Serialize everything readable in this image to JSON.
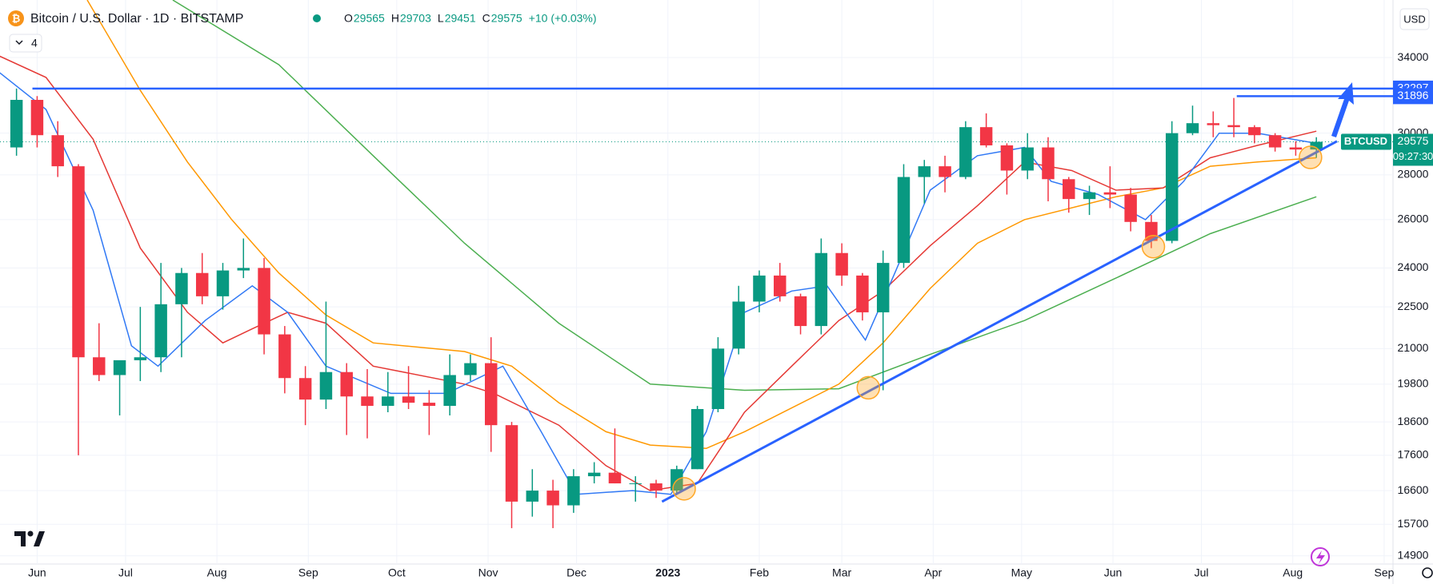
{
  "chart_data": {
    "type": "candlestick",
    "title": "Bitcoin / U.S. Dollar · 1D · BITSTAMP",
    "ohlc_header": [
      {
        "label": "O",
        "value": 29565
      },
      {
        "label": "H",
        "value": 29703
      },
      {
        "label": "L",
        "value": 29451
      },
      {
        "label": "C",
        "value": 29575
      }
    ],
    "change": "+10 (+0.03%)",
    "indicator_count": "4",
    "currency": "USD",
    "up_color": "#089981",
    "down_color": "#f23645",
    "log_scale": true,
    "xlim": [
      -12.6,
      460
    ],
    "ylim": [
      14700,
      37400
    ],
    "xticks": [
      {
        "value": 0,
        "label": "Jun"
      },
      {
        "value": 30,
        "label": "Jul"
      },
      {
        "value": 61,
        "label": "Aug"
      },
      {
        "value": 92,
        "label": "Sep"
      },
      {
        "value": 122,
        "label": "Oct"
      },
      {
        "value": 153,
        "label": "Nov"
      },
      {
        "value": 183,
        "label": "Dec"
      },
      {
        "value": 214,
        "label": "2023"
      },
      {
        "value": 245,
        "label": "Feb"
      },
      {
        "value": 273,
        "label": "Mar"
      },
      {
        "value": 304,
        "label": "Apr"
      },
      {
        "value": 334,
        "label": "May"
      },
      {
        "value": 365,
        "label": "Jun"
      },
      {
        "value": 395,
        "label": "Jul"
      },
      {
        "value": 426,
        "label": "Aug"
      },
      {
        "value": 457,
        "label": "Sep"
      }
    ],
    "yticks": [
      14900,
      15700,
      16600,
      17600,
      18600,
      19800,
      21000,
      22500,
      24000,
      26000,
      28000,
      30000,
      34000
    ],
    "candles": {
      "x": [
        -7,
        0,
        7,
        14,
        21,
        28,
        35,
        42,
        49,
        56,
        63,
        70,
        77,
        84,
        91,
        98,
        105,
        112,
        119,
        126,
        133,
        140,
        147,
        154,
        161,
        168,
        175,
        182,
        189,
        196,
        203,
        210,
        217,
        224,
        231,
        238,
        245,
        252,
        259,
        266,
        273,
        280,
        287,
        294,
        301,
        308,
        315,
        322,
        329,
        336,
        343,
        350,
        357,
        364,
        371,
        378,
        385,
        392,
        399,
        406,
        413,
        420,
        427,
        434
      ],
      "open": [
        29300,
        31700,
        29900,
        28400,
        20700,
        20100,
        20600,
        20700,
        22600,
        23800,
        22900,
        23900,
        24000,
        21500,
        20000,
        19300,
        20200,
        19400,
        19100,
        19400,
        19200,
        19100,
        20100,
        20500,
        18500,
        16300,
        16600,
        16200,
        17000,
        17100,
        16800,
        16800,
        16600,
        17200,
        19000,
        21000,
        22700,
        23700,
        22900,
        21800,
        24600,
        23700,
        22300,
        24200,
        27900,
        28400,
        27900,
        30300,
        29400,
        28200,
        29300,
        27800,
        26900,
        27200,
        27100,
        25900,
        25100,
        30000,
        30500,
        30400,
        30300,
        29900,
        29300,
        29200
      ],
      "high": [
        32300,
        31900,
        30600,
        28500,
        21900,
        20400,
        22500,
        24200,
        24000,
        24600,
        24200,
        25200,
        24400,
        21800,
        20400,
        22700,
        20500,
        20300,
        20200,
        20400,
        19600,
        20800,
        20800,
        21400,
        18600,
        17200,
        16900,
        17200,
        17400,
        18400,
        17000,
        16900,
        17300,
        19100,
        21400,
        23300,
        23900,
        24200,
        23000,
        25200,
        25000,
        23800,
        24700,
        28500,
        28700,
        28900,
        30600,
        31000,
        29500,
        30000,
        29800,
        27900,
        27500,
        28400,
        27400,
        26200,
        30600,
        31400,
        31100,
        31800,
        30400,
        30000,
        29600,
        29800
      ],
      "low": [
        28900,
        29300,
        27900,
        17600,
        19900,
        18800,
        19900,
        20200,
        20700,
        22600,
        22400,
        23600,
        20800,
        19500,
        18500,
        19000,
        18200,
        18100,
        18900,
        19000,
        18200,
        18800,
        19900,
        17700,
        15600,
        15900,
        15600,
        16000,
        16800,
        16800,
        16300,
        16400,
        16500,
        17200,
        18900,
        20800,
        22300,
        22700,
        21500,
        21500,
        23300,
        22000,
        19600,
        24000,
        26700,
        27200,
        27800,
        29300,
        27100,
        27800,
        26800,
        26300,
        26200,
        26500,
        25500,
        24800,
        25000,
        29900,
        29800,
        29800,
        29500,
        29100,
        28900,
        28800
      ],
      "close": [
        31700,
        29900,
        28400,
        20700,
        20100,
        20600,
        20700,
        22600,
        23800,
        22900,
        23900,
        24000,
        21500,
        20000,
        19300,
        20200,
        19400,
        19100,
        19400,
        19200,
        19100,
        20100,
        20500,
        18500,
        16300,
        16600,
        16200,
        17000,
        17100,
        16800,
        16800,
        16600,
        17200,
        19000,
        21000,
        22700,
        23700,
        22900,
        21800,
        24600,
        23700,
        22300,
        24200,
        27900,
        28400,
        27900,
        30300,
        29400,
        28200,
        29300,
        27800,
        26900,
        27200,
        27100,
        25900,
        25100,
        30000,
        30500,
        30400,
        30300,
        29900,
        29300,
        29200,
        29575
      ]
    },
    "overlays": [
      {
        "color": "#4caf50",
        "x": [
          46,
          82,
          114,
          145,
          177,
          208,
          240,
          272,
          303,
          335,
          366,
          398,
          434
        ],
        "values": [
          37400,
          33600,
          28900,
          25000,
          21900,
          19800,
          19600,
          19650,
          20800,
          22000,
          23600,
          25400,
          27000
        ]
      },
      {
        "color": "#ff9800",
        "x": [
          17,
          35,
          51,
          66,
          82,
          98,
          114,
          145,
          161,
          177,
          193,
          208,
          227,
          240,
          272,
          287,
          303,
          319,
          335,
          366,
          382,
          398,
          414,
          434
        ],
        "values": [
          37400,
          32200,
          28600,
          26000,
          23800,
          22200,
          21200,
          20900,
          20400,
          19200,
          18300,
          17900,
          17800,
          18300,
          19800,
          21200,
          23200,
          25000,
          26000,
          27000,
          27400,
          28400,
          28600,
          28800
        ]
      },
      {
        "color": "#e53935",
        "x": [
          -13,
          3,
          19,
          35,
          51,
          63,
          73,
          85,
          98,
          114,
          145,
          155,
          177,
          193,
          208,
          224,
          240,
          256,
          272,
          287,
          303,
          319,
          335,
          351,
          366,
          382,
          398,
          414,
          434
        ],
        "values": [
          34100,
          32900,
          29700,
          24800,
          22300,
          21200,
          21700,
          22300,
          21900,
          20400,
          19800,
          19500,
          18500,
          17300,
          16600,
          16800,
          18900,
          20400,
          22000,
          23100,
          24900,
          26600,
          28600,
          28200,
          27300,
          27400,
          28800,
          29400,
          30100
        ]
      },
      {
        "color": "#3179f5",
        "x": [
          -13,
          3,
          19,
          32,
          41,
          57,
          73,
          85,
          98,
          120,
          139,
          158,
          171,
          183,
          202,
          215,
          227,
          240,
          256,
          268,
          281,
          291,
          303,
          319,
          335,
          344,
          360,
          376,
          389,
          401,
          414,
          434
        ],
        "values": [
          33200,
          31200,
          26400,
          21100,
          20400,
          22000,
          23300,
          22300,
          20400,
          19500,
          19500,
          20400,
          18300,
          16500,
          16600,
          16500,
          18300,
          22300,
          23100,
          23300,
          21300,
          23800,
          27300,
          28900,
          29300,
          27700,
          27100,
          26000,
          27700,
          30000,
          30000,
          29500
        ]
      }
    ],
    "levels": [
      {
        "value": 32297,
        "x_start": -1.6,
        "color": "#2962ff"
      },
      {
        "value": 31896,
        "x_start": 407,
        "color": "#2962ff"
      }
    ],
    "trendline": {
      "x": [
        212,
        441
      ],
      "values": [
        16300,
        29600
      ],
      "color": "#2962ff"
    },
    "highlights": {
      "x": [
        219.5,
        282,
        378.7,
        432
      ],
      "values": [
        16650,
        19680,
        24860,
        28820
      ],
      "color": "#ffa726"
    },
    "last_price": {
      "symbol": "BTCUSD",
      "value": 29575,
      "countdown": "09:27:30",
      "color": "#089981"
    }
  }
}
